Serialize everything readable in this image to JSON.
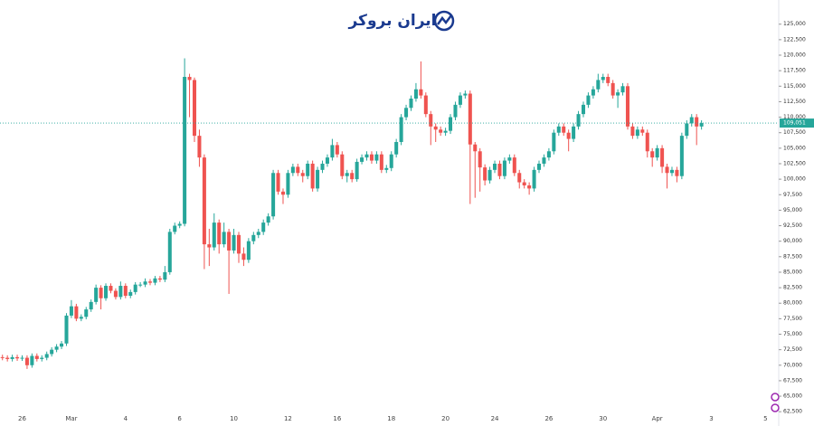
{
  "chart_data": {
    "type": "candlestick",
    "brand": "ایران بروکر",
    "categories": [
      null,
      null,
      null,
      null,
      "26",
      null,
      null,
      null,
      null,
      null,
      null,
      null,
      null,
      null,
      "Mar",
      null,
      null,
      null,
      null,
      null,
      null,
      null,
      null,
      null,
      null,
      "4",
      null,
      null,
      null,
      null,
      null,
      null,
      null,
      null,
      null,
      null,
      "6",
      null,
      null,
      null,
      null,
      null,
      null,
      null,
      null,
      null,
      null,
      "10",
      null,
      null,
      null,
      null,
      null,
      null,
      null,
      null,
      null,
      null,
      "12",
      null,
      null,
      null,
      null,
      null,
      null,
      null,
      null,
      null,
      "16",
      null,
      null,
      null,
      null,
      null,
      null,
      null,
      null,
      null,
      null,
      "18",
      null,
      null,
      null,
      null,
      null,
      null,
      null,
      null,
      null,
      null,
      "20",
      null,
      null,
      null,
      null,
      null,
      null,
      null,
      null,
      null,
      "24",
      null,
      null,
      null,
      null,
      null,
      null,
      null,
      null,
      null,
      null,
      "26",
      null,
      null,
      null,
      null,
      null,
      null,
      null,
      null,
      null,
      null,
      "30",
      null,
      null,
      null,
      null,
      null,
      null,
      null,
      null,
      null,
      null,
      "Apr",
      null,
      null,
      null,
      null,
      null,
      null,
      null,
      null,
      null,
      null,
      "3",
      null,
      null,
      null,
      null,
      null,
      null,
      null,
      null,
      null,
      null,
      "5",
      null,
      null
    ],
    "open": [
      71300,
      71200,
      71000,
      71300,
      71100,
      71200,
      70000,
      71500,
      71000,
      71200,
      71800,
      72500,
      73000,
      73500,
      78000,
      79500,
      77500,
      77800,
      79000,
      80200,
      82500,
      80800,
      82800,
      82000,
      81000,
      82800,
      81200,
      81800,
      83000,
      83000,
      83500,
      83300,
      84000,
      83800,
      85000,
      91500,
      92500,
      92800,
      116500,
      116000,
      107000,
      103500,
      89500,
      89000,
      93000,
      89500,
      91500,
      88500,
      91000,
      88000,
      87000,
      90000,
      91000,
      91500,
      93000,
      94000,
      101000,
      98000,
      97500,
      101000,
      102000,
      101000,
      100500,
      102500,
      98500,
      101500,
      102500,
      103500,
      105500,
      104000,
      100500,
      101000,
      100000,
      102800,
      103500,
      104000,
      103000,
      104000,
      101500,
      101800,
      104000,
      106000,
      110000,
      111500,
      113000,
      114500,
      113500,
      110500,
      108500,
      108000,
      107500,
      107800,
      110000,
      112000,
      113500,
      113800,
      105600,
      104500,
      101900,
      99800,
      101500,
      102500,
      100500,
      103000,
      103500,
      101000,
      99500,
      99000,
      98500,
      101500,
      102500,
      103500,
      104500,
      107500,
      108500,
      107500,
      106500,
      108500,
      110500,
      112000,
      113500,
      114500,
      116000,
      116500,
      115500,
      113500,
      114000,
      115000,
      108500,
      107000,
      108000,
      107500,
      104500,
      103500,
      105000,
      102000,
      101000,
      101500,
      100500,
      107000,
      109000,
      110000,
      108500,
      null,
      null,
      null,
      null,
      null,
      null,
      null,
      null,
      null,
      null,
      null,
      null,
      null,
      null,
      null
    ],
    "high": [
      71700,
      71600,
      71700,
      71700,
      71600,
      71600,
      71900,
      71900,
      71600,
      72200,
      72900,
      73400,
      73900,
      78400,
      80500,
      79900,
      78200,
      79400,
      80600,
      83000,
      82900,
      83200,
      83200,
      82400,
      83500,
      83200,
      82200,
      83400,
      83400,
      84000,
      83900,
      84400,
      84400,
      86000,
      92000,
      93000,
      93200,
      119500,
      117000,
      116400,
      108000,
      104000,
      92000,
      94500,
      93500,
      93000,
      92000,
      92000,
      91500,
      89000,
      90500,
      91500,
      92000,
      93500,
      94500,
      101500,
      101500,
      98500,
      101500,
      102500,
      102500,
      101500,
      103000,
      103000,
      102000,
      103000,
      104000,
      106500,
      106000,
      104500,
      101500,
      101500,
      103300,
      104000,
      104500,
      104500,
      104500,
      104500,
      102300,
      104500,
      106500,
      110500,
      112000,
      113500,
      115500,
      119000,
      114000,
      111000,
      109000,
      108500,
      108300,
      110500,
      112500,
      114000,
      114300,
      114300,
      106000,
      105000,
      102400,
      102000,
      103000,
      103000,
      103500,
      104000,
      104000,
      101500,
      100000,
      99500,
      102000,
      103000,
      104000,
      105000,
      108000,
      109000,
      109000,
      108000,
      109000,
      111000,
      112500,
      114000,
      115000,
      117000,
      117000,
      117000,
      116000,
      114500,
      115500,
      115500,
      109000,
      108500,
      108500,
      108000,
      105000,
      105500,
      105500,
      102500,
      102000,
      102000,
      107500,
      109500,
      110500,
      110500,
      109500,
      null,
      null,
      null,
      null,
      null,
      null,
      null,
      null,
      null,
      null,
      null,
      null,
      null,
      null,
      null
    ],
    "low": [
      70800,
      70600,
      70600,
      70700,
      70700,
      69400,
      69600,
      70600,
      70600,
      70800,
      71400,
      72100,
      72600,
      73100,
      77600,
      77100,
      77100,
      77400,
      78600,
      79800,
      79000,
      80400,
      81600,
      80600,
      80600,
      80800,
      80800,
      81400,
      82600,
      82600,
      82900,
      82900,
      83400,
      83400,
      84600,
      91100,
      92100,
      92400,
      110000,
      106000,
      102000,
      85500,
      86000,
      88500,
      88000,
      89000,
      81500,
      88000,
      86500,
      86000,
      86500,
      89500,
      90500,
      91000,
      92500,
      93500,
      97500,
      96000,
      97000,
      100500,
      100500,
      99500,
      100000,
      98000,
      98000,
      101000,
      102000,
      103000,
      103500,
      100000,
      99500,
      99500,
      99600,
      102400,
      103000,
      102500,
      102500,
      101000,
      101000,
      101300,
      103500,
      105500,
      109500,
      111000,
      112500,
      113000,
      110000,
      105500,
      106000,
      107000,
      107000,
      107300,
      109500,
      111500,
      113000,
      96000,
      97000,
      98000,
      99000,
      99300,
      101000,
      100000,
      100000,
      102500,
      100500,
      98500,
      98500,
      97500,
      98000,
      101000,
      102000,
      103000,
      104000,
      107000,
      107000,
      104500,
      106000,
      108000,
      110000,
      111500,
      113000,
      114000,
      115500,
      115000,
      113000,
      111500,
      113500,
      108000,
      106500,
      106500,
      107000,
      103500,
      102000,
      103000,
      101000,
      98500,
      100500,
      99500,
      100000,
      106500,
      108500,
      105500,
      108000,
      null,
      null,
      null,
      null,
      null,
      null,
      null,
      null,
      null,
      null,
      null,
      null,
      null,
      null,
      null
    ],
    "close": [
      71200,
      71000,
      71300,
      71100,
      71200,
      70000,
      71500,
      71000,
      71200,
      71800,
      72500,
      73000,
      73500,
      78000,
      79500,
      77500,
      77800,
      79000,
      80200,
      82500,
      80800,
      82800,
      82000,
      81000,
      82800,
      81200,
      81800,
      83000,
      83000,
      83500,
      83300,
      84000,
      83800,
      85000,
      91500,
      92500,
      92800,
      116500,
      116000,
      107000,
      103500,
      89500,
      89000,
      93000,
      89500,
      91500,
      88500,
      91000,
      88000,
      87000,
      90000,
      91000,
      91500,
      93000,
      94000,
      101000,
      98000,
      97500,
      101000,
      102000,
      101000,
      100500,
      102500,
      98500,
      101500,
      102500,
      103500,
      105500,
      104000,
      100500,
      101000,
      100000,
      102800,
      103500,
      104000,
      103000,
      104000,
      101500,
      101800,
      104000,
      106000,
      110000,
      111500,
      113000,
      114500,
      113500,
      110500,
      108500,
      108000,
      107500,
      107800,
      110000,
      112000,
      113500,
      113800,
      105600,
      104500,
      101900,
      99800,
      101500,
      102500,
      100500,
      103000,
      103500,
      101000,
      99500,
      99000,
      98500,
      101500,
      102500,
      103500,
      104500,
      107500,
      108500,
      107500,
      106500,
      108500,
      110500,
      112000,
      113500,
      114500,
      116000,
      116500,
      115500,
      113500,
      114000,
      115000,
      108500,
      107000,
      108000,
      107500,
      104500,
      103500,
      105000,
      102000,
      101000,
      101500,
      100500,
      107000,
      109000,
      110000,
      108500,
      109051,
      null,
      null,
      null,
      null,
      null,
      null,
      null,
      null,
      null,
      null,
      null,
      null,
      null,
      null,
      null
    ],
    "up_color": "#26a69a",
    "down_color": "#ef5350",
    "current_price": {
      "value": 109051,
      "label": "109,051"
    },
    "ylim": [
      61800,
      128900
    ],
    "yticks": [
      {
        "value": 125000,
        "label": "125,000"
      },
      {
        "value": 122500,
        "label": "122,500"
      },
      {
        "value": 120000,
        "label": "120,000"
      },
      {
        "value": 117500,
        "label": "117,500"
      },
      {
        "value": 115000,
        "label": "115,000"
      },
      {
        "value": 112500,
        "label": "112,500"
      },
      {
        "value": 110000,
        "label": "110,000"
      },
      {
        "value": 107500,
        "label": "107,500"
      },
      {
        "value": 105000,
        "label": "105,000"
      },
      {
        "value": 102500,
        "label": "102,500"
      },
      {
        "value": 100000,
        "label": "100,000"
      },
      {
        "value": 97500,
        "label": "97,500"
      },
      {
        "value": 95000,
        "label": "95,000"
      },
      {
        "value": 92500,
        "label": "92,500"
      },
      {
        "value": 90000,
        "label": "90,000"
      },
      {
        "value": 87500,
        "label": "87,500"
      },
      {
        "value": 85000,
        "label": "85,000"
      },
      {
        "value": 82500,
        "label": "82,500"
      },
      {
        "value": 80000,
        "label": "80,000"
      },
      {
        "value": 77500,
        "label": "77,500"
      },
      {
        "value": 75000,
        "label": "75,000"
      },
      {
        "value": 72500,
        "label": "72,500"
      },
      {
        "value": 70000,
        "label": "70,000"
      },
      {
        "value": 67500,
        "label": "67,500"
      },
      {
        "value": 65000,
        "label": "65,000"
      },
      {
        "value": 62500,
        "label": "62,500"
      }
    ],
    "grid": false
  }
}
